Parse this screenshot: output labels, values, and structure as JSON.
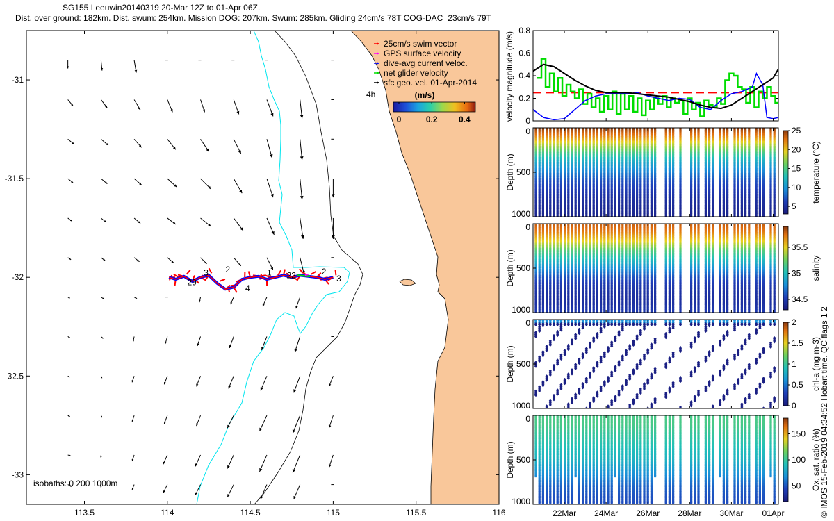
{
  "title": {
    "line1": "SG155 Leeuwin20140319 20-Mar 12Z to 01-Apr 06Z.",
    "line2": "Dist. over ground: 182km. Dist. swum: 254km. Mission DOG: 207km. Swum: 285km. Gliding 24cm/s 78T COG-DAC=23cm/s 79T"
  },
  "credit": "© IMOS 15-Feb-2019 04:34:52 Hobart time. QC flags 1  2",
  "colors": {
    "land": "#f9c79a",
    "isobath_200": "#00e5ee",
    "isobath_1000": "#000000",
    "swim_vector": "#ff0000",
    "gps_velocity": "#ff00ff",
    "dac": "#0000ff",
    "net_velocity": "#00dd00",
    "ref_line": "#ff0000"
  },
  "chart_data": [
    {
      "type": "map",
      "name": "glider_track_map",
      "xlim": [
        113.15,
        116.0
      ],
      "ylim": [
        -33.15,
        -30.75
      ],
      "xticks": [
        113.5,
        114,
        114.5,
        115,
        115.5,
        116
      ],
      "yticks": [
        -31,
        -31.5,
        -32,
        -32.5,
        -33
      ],
      "legend": [
        {
          "label": "25cm/s swim vector",
          "color": "#ff0000"
        },
        {
          "label": "GPS surface velocity",
          "color": "#ff00ff"
        },
        {
          "label": "dive-avg current veloc.",
          "color": "#0000ff"
        },
        {
          "label": "net glider velocity",
          "color": "#00dd00"
        },
        {
          "label": "sfc geo. vel. 01-Apr-2014",
          "color": "#000000"
        }
      ],
      "colorbar": {
        "title": "(m/s)",
        "ticks": [
          "0",
          "0.2",
          "0.4"
        ],
        "range": [
          0,
          0.5
        ]
      },
      "isobaths_label": "isobaths: 0   200  1000m",
      "scale_label": "4h",
      "track_labels": [
        "29",
        "2",
        "1",
        "22",
        "2",
        "3",
        "3",
        "4"
      ],
      "track": {
        "lon": [
          114.01,
          114.05,
          114.1,
          114.15,
          114.2,
          114.25,
          114.3,
          114.35,
          114.4,
          114.45,
          114.5,
          114.55,
          114.6,
          114.65,
          114.7,
          114.75,
          114.8,
          114.85,
          114.9,
          114.95,
          115.0
        ],
        "lat": [
          -32.0,
          -32.01,
          -31.995,
          -32.02,
          -32.0,
          -31.99,
          -32.03,
          -32.06,
          -32.05,
          -32.01,
          -32.0,
          -31.995,
          -32.01,
          -32.0,
          -31.99,
          -32.0,
          -31.99,
          -31.995,
          -32.0,
          -32.01,
          -32.0
        ]
      },
      "arrow_grid": {
        "lon": [
          113.4,
          113.6,
          113.8,
          114.0,
          114.2,
          114.4,
          114.6,
          114.8,
          115.0
        ],
        "lat": [
          -30.9,
          -31.1,
          -31.3,
          -31.5,
          -31.7,
          -31.9,
          -32.1,
          -32.3,
          -32.5,
          -32.7,
          -32.9,
          -33.05
        ],
        "vectors": [
          [
            [
              0.0,
              -0.08
            ],
            [
              0.01,
              -0.1
            ],
            [
              0.02,
              -0.12
            ],
            [
              0.0,
              0.0
            ],
            [
              0.0,
              0.0
            ],
            [
              0.0,
              0.0
            ],
            [
              0.0,
              0.0
            ],
            [
              0.0,
              0.0
            ],
            [
              0.0,
              0.0
            ]
          ],
          [
            [
              0.05,
              -0.06
            ],
            [
              0.06,
              -0.08
            ],
            [
              0.06,
              -0.1
            ],
            [
              0.05,
              -0.12
            ],
            [
              0.04,
              -0.12
            ],
            [
              0.05,
              -0.14
            ],
            [
              0.06,
              -0.16
            ],
            [
              0.02,
              -0.18
            ],
            [
              0.0,
              0.0
            ]
          ],
          [
            [
              0.06,
              -0.05
            ],
            [
              0.07,
              -0.06
            ],
            [
              0.07,
              -0.08
            ],
            [
              0.08,
              -0.1
            ],
            [
              0.08,
              -0.12
            ],
            [
              0.07,
              -0.14
            ],
            [
              0.05,
              -0.18
            ],
            [
              0.02,
              -0.2
            ],
            [
              0.0,
              0.0
            ]
          ],
          [
            [
              0.05,
              -0.04
            ],
            [
              0.06,
              -0.05
            ],
            [
              0.07,
              -0.06
            ],
            [
              0.09,
              -0.08
            ],
            [
              0.1,
              -0.1
            ],
            [
              0.08,
              -0.14
            ],
            [
              0.06,
              -0.18
            ],
            [
              0.02,
              -0.2
            ],
            [
              0.0,
              -0.18
            ]
          ],
          [
            [
              0.04,
              -0.03
            ],
            [
              0.05,
              -0.04
            ],
            [
              0.06,
              -0.05
            ],
            [
              0.08,
              -0.06
            ],
            [
              0.1,
              -0.08
            ],
            [
              0.09,
              -0.12
            ],
            [
              0.07,
              -0.16
            ],
            [
              0.03,
              -0.2
            ],
            [
              0.0,
              -0.2
            ]
          ],
          [
            [
              0.03,
              -0.02
            ],
            [
              0.04,
              -0.03
            ],
            [
              0.05,
              -0.04
            ],
            [
              0.06,
              -0.05
            ],
            [
              0.06,
              -0.06
            ],
            [
              0.07,
              -0.08
            ],
            [
              0.06,
              -0.12
            ],
            [
              0.04,
              -0.16
            ],
            [
              0.0,
              0.0
            ]
          ],
          [
            [
              0.02,
              -0.01
            ],
            [
              0.03,
              -0.02
            ],
            [
              0.03,
              -0.02
            ],
            [
              0.0,
              0.0
            ],
            [
              -0.01,
              -0.05
            ],
            [
              -0.03,
              -0.07
            ],
            [
              -0.04,
              -0.09
            ],
            [
              -0.04,
              -0.11
            ],
            [
              0.0,
              0.0
            ]
          ],
          [
            [
              0.02,
              -0.01
            ],
            [
              0.02,
              -0.02
            ],
            [
              -0.01,
              -0.05
            ],
            [
              -0.02,
              -0.07
            ],
            [
              -0.03,
              -0.09
            ],
            [
              -0.04,
              -0.11
            ],
            [
              -0.05,
              -0.13
            ],
            [
              -0.05,
              -0.15
            ],
            [
              0.0,
              0.0
            ]
          ],
          [
            [
              0.02,
              -0.01
            ],
            [
              0.01,
              -0.02
            ],
            [
              -0.02,
              -0.06
            ],
            [
              -0.03,
              -0.08
            ],
            [
              -0.04,
              -0.1
            ],
            [
              -0.05,
              -0.12
            ],
            [
              -0.06,
              -0.14
            ],
            [
              -0.06,
              -0.16
            ],
            [
              -0.04,
              -0.1
            ]
          ],
          [
            [
              0.02,
              -0.01
            ],
            [
              0.01,
              -0.02
            ],
            [
              -0.02,
              -0.06
            ],
            [
              -0.03,
              -0.08
            ],
            [
              -0.04,
              -0.1
            ],
            [
              -0.06,
              -0.12
            ],
            [
              -0.07,
              -0.15
            ],
            [
              -0.07,
              -0.17
            ],
            [
              -0.04,
              -0.12
            ]
          ],
          [
            [
              0.03,
              -0.01
            ],
            [
              0.0,
              -0.03
            ],
            [
              -0.02,
              -0.06
            ],
            [
              -0.04,
              -0.09
            ],
            [
              -0.05,
              -0.11
            ],
            [
              -0.06,
              -0.13
            ],
            [
              -0.07,
              -0.16
            ],
            [
              -0.07,
              -0.17
            ],
            [
              -0.04,
              -0.12
            ]
          ],
          [
            [
              0.04,
              -0.02
            ],
            [
              0.0,
              -0.03
            ],
            [
              -0.02,
              -0.05
            ],
            [
              -0.04,
              -0.08
            ],
            [
              -0.05,
              -0.1
            ],
            [
              -0.06,
              -0.12
            ],
            [
              -0.06,
              -0.14
            ],
            [
              -0.06,
              -0.14
            ],
            [
              0.0,
              0.0
            ]
          ]
        ]
      }
    },
    {
      "type": "line",
      "name": "velocity_magnitude",
      "ylabel": "velocity magnitude (m/s)",
      "ylim": [
        0,
        0.8
      ],
      "yticks": [
        "0",
        "0.2",
        "0.4",
        "0.6",
        "0.8"
      ],
      "xlim": [
        20.5,
        32.25
      ],
      "xtick_positions": [
        22,
        24,
        26,
        28,
        30,
        32
      ],
      "xtick_labels": [
        "22Mar",
        "24Mar",
        "26Mar",
        "28Mar",
        "30Mar",
        "01Apr"
      ],
      "reference_line": 0.25,
      "series": [
        {
          "name": "sfc geo. vel.",
          "color": "#000000",
          "x": [
            20.5,
            21.0,
            21.5,
            22.0,
            22.5,
            23.0,
            23.5,
            24.0,
            24.5,
            25.0,
            25.5,
            26.0,
            26.5,
            27.0,
            27.5,
            28.0,
            28.5,
            29.0,
            29.5,
            30.0,
            30.5,
            31.0,
            31.5,
            32.0,
            32.25
          ],
          "values": [
            0.44,
            0.5,
            0.48,
            0.42,
            0.36,
            0.31,
            0.27,
            0.25,
            0.25,
            0.25,
            0.24,
            0.23,
            0.22,
            0.21,
            0.19,
            0.17,
            0.14,
            0.12,
            0.11,
            0.14,
            0.2,
            0.26,
            0.32,
            0.38,
            0.46
          ]
        },
        {
          "name": "net glider velocity",
          "color": "#00dd00",
          "x": [
            20.7,
            20.9,
            21.1,
            21.3,
            21.5,
            21.7,
            21.9,
            22.1,
            22.3,
            22.5,
            22.7,
            22.9,
            23.1,
            23.3,
            23.5,
            23.7,
            23.9,
            24.1,
            24.3,
            24.5,
            24.7,
            24.9,
            25.1,
            25.3,
            25.5,
            25.7,
            25.9,
            26.1,
            26.3,
            26.5,
            26.7,
            26.9,
            27.1,
            27.3,
            27.5,
            27.7,
            27.9,
            28.1,
            28.3,
            28.5,
            28.7,
            28.9,
            29.1,
            29.3,
            29.5,
            29.7,
            29.9,
            30.1,
            30.3,
            30.5,
            30.7,
            30.9,
            31.1,
            31.3,
            31.5,
            31.7,
            31.9,
            32.1
          ],
          "values": [
            0.38,
            0.55,
            0.3,
            0.42,
            0.26,
            0.38,
            0.22,
            0.32,
            0.26,
            0.2,
            0.28,
            0.15,
            0.24,
            0.12,
            0.2,
            0.08,
            0.22,
            0.1,
            0.26,
            0.06,
            0.24,
            0.1,
            0.22,
            0.08,
            0.2,
            0.05,
            0.18,
            0.1,
            0.2,
            0.15,
            0.22,
            0.12,
            0.2,
            0.16,
            0.18,
            0.06,
            0.2,
            0.1,
            0.16,
            0.04,
            0.18,
            0.14,
            0.12,
            0.2,
            0.15,
            0.36,
            0.42,
            0.4,
            0.3,
            0.28,
            0.16,
            0.3,
            0.12,
            0.26,
            0.2,
            0.3,
            0.22,
            0.16
          ]
        },
        {
          "name": "dive-avg current veloc.",
          "color": "#0000ff",
          "x": [
            20.5,
            21.0,
            21.5,
            22.0,
            22.5,
            23.0,
            23.5,
            24.0,
            24.5,
            25.0,
            25.5,
            26.0,
            26.5,
            27.0,
            27.5,
            28.0,
            28.5,
            29.0,
            29.5,
            30.0,
            30.5,
            31.0,
            31.2,
            31.5,
            31.7,
            32.0,
            32.25
          ],
          "values": [
            0.1,
            0.03,
            0.01,
            0.02,
            0.1,
            0.18,
            0.22,
            0.24,
            0.24,
            0.24,
            0.25,
            0.22,
            0.2,
            0.18,
            0.2,
            0.19,
            0.12,
            0.1,
            0.18,
            0.24,
            0.26,
            0.3,
            0.42,
            0.32,
            0.03,
            0.02,
            0.03
          ]
        }
      ]
    },
    {
      "type": "heatmap",
      "name": "temperature_section",
      "ylabel": "Depth (m)",
      "ylim": [
        1000,
        0
      ],
      "yticks": [
        "0",
        "500",
        "1000"
      ],
      "colorbar_label": "temperature (°C)",
      "colorbar_range": [
        3,
        25
      ],
      "colorbar_ticks": [
        "25",
        "20",
        "15",
        "10",
        "5"
      ],
      "depth_profile_values": [
        25,
        22,
        18,
        14,
        11,
        9,
        7,
        6,
        5,
        4.5,
        4
      ],
      "profile_depths": [
        0,
        100,
        200,
        300,
        400,
        500,
        600,
        700,
        800,
        900,
        1000
      ]
    },
    {
      "type": "heatmap",
      "name": "salinity_section",
      "ylabel": "Depth (m)",
      "ylim": [
        1000,
        0
      ],
      "yticks": [
        "0",
        "500",
        "1000"
      ],
      "colorbar_label": "salinity",
      "colorbar_range": [
        34.3,
        35.9
      ],
      "colorbar_ticks": [
        "35.5",
        "35",
        "34.5"
      ],
      "depth_profile_values": [
        35.8,
        35.7,
        35.5,
        35.2,
        35.0,
        34.8,
        34.6,
        34.5,
        34.45,
        34.45,
        34.5
      ],
      "profile_depths": [
        0,
        100,
        200,
        300,
        400,
        500,
        600,
        700,
        800,
        900,
        1000
      ]
    },
    {
      "type": "scatter",
      "name": "chla_section",
      "ylabel": "Depth (m)",
      "ylim": [
        1000,
        0
      ],
      "yticks": [
        "0",
        "500",
        "1000"
      ],
      "colorbar_label": "chl-a (mg m-3)",
      "colorbar_range": [
        0,
        2
      ],
      "colorbar_ticks": [
        "2",
        "1.5",
        "1",
        "0.5",
        "0"
      ],
      "typical_value_deep": 0.05,
      "typical_value_surface": 0.6
    },
    {
      "type": "scatter",
      "name": "oxygen_section",
      "ylabel": "Depth (m)",
      "ylim": [
        1000,
        0
      ],
      "yticks": [
        "0",
        "500",
        "1000"
      ],
      "colorbar_label": "Ox. sat. ratio (%)",
      "colorbar_range": [
        20,
        180
      ],
      "colorbar_ticks": [
        "150",
        "100",
        "50"
      ],
      "depth_profile_values": [
        105,
        105,
        100,
        95,
        90,
        85,
        75,
        65,
        55,
        50,
        48
      ],
      "profile_depths": [
        0,
        100,
        200,
        300,
        400,
        500,
        600,
        700,
        800,
        900,
        1000
      ]
    }
  ]
}
